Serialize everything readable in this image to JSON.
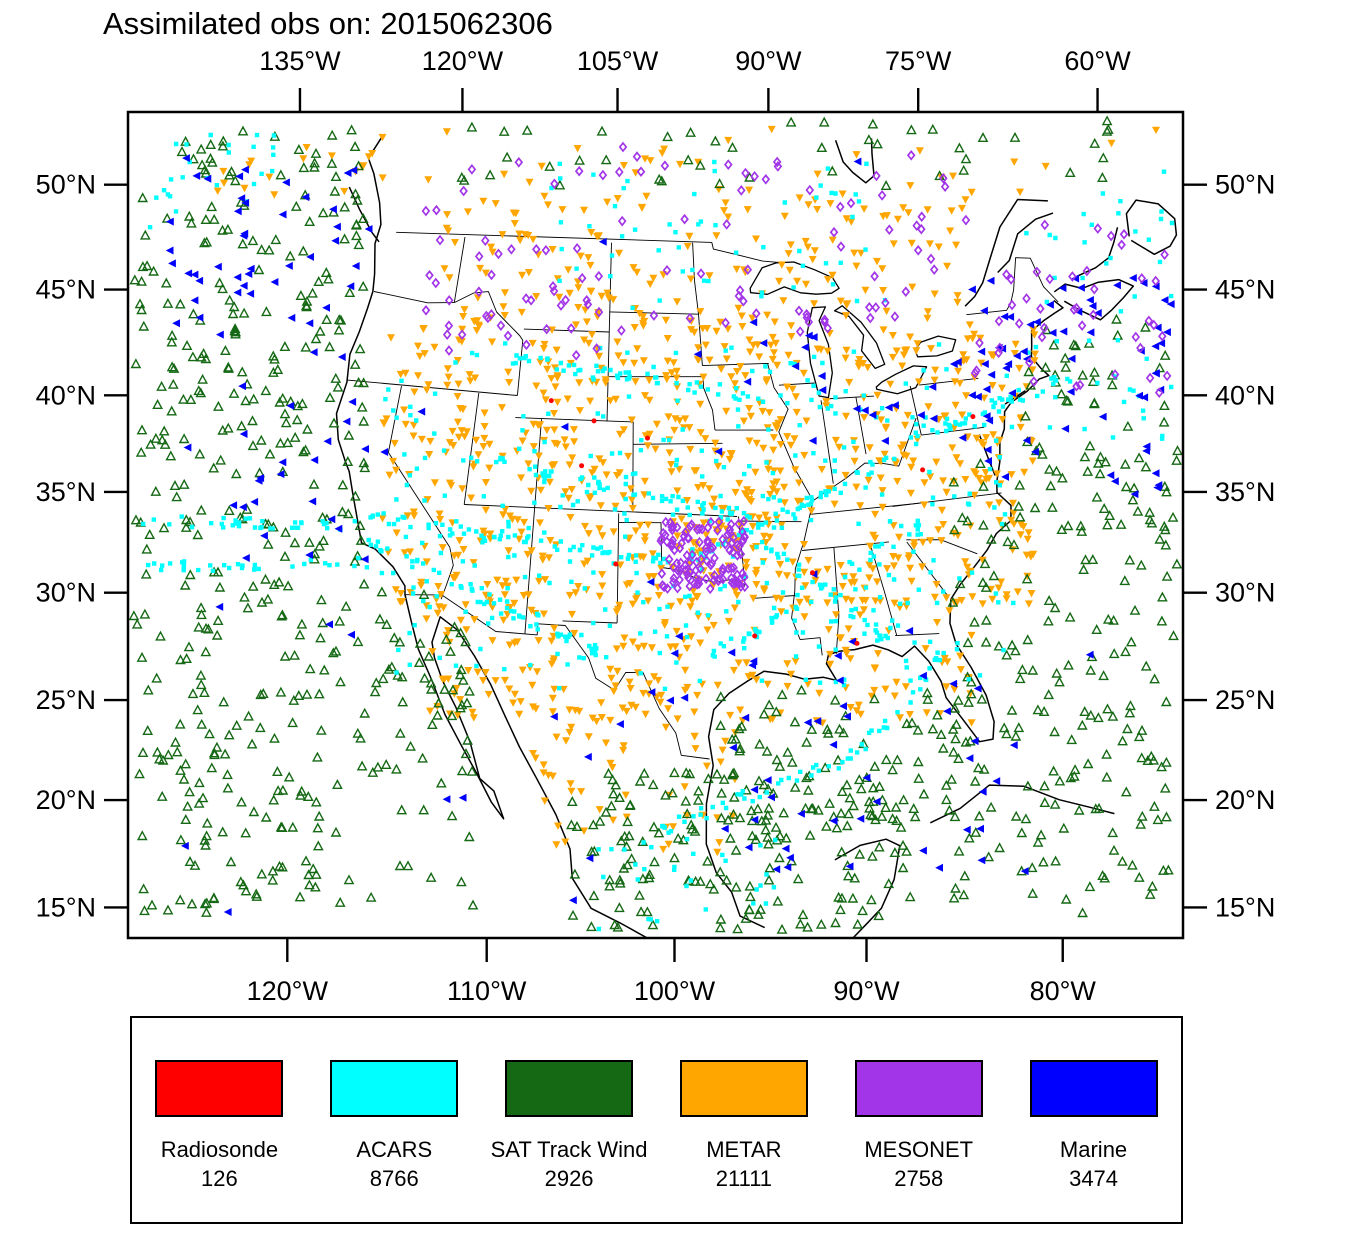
{
  "title": "Assimilated obs on: 2015062306",
  "axes": {
    "top": [
      {
        "label": "135°W",
        "f": 0.163
      },
      {
        "label": "120°W",
        "f": 0.317
      },
      {
        "label": "105°W",
        "f": 0.464
      },
      {
        "label": "90°W",
        "f": 0.607
      },
      {
        "label": "75°W",
        "f": 0.749
      },
      {
        "label": "60°W",
        "f": 0.919
      }
    ],
    "bottom": [
      {
        "label": "120°W",
        "f": 0.151
      },
      {
        "label": "110°W",
        "f": 0.34
      },
      {
        "label": "100°W",
        "f": 0.518
      },
      {
        "label": "90°W",
        "f": 0.7
      },
      {
        "label": "80°W",
        "f": 0.886
      }
    ],
    "left": [
      {
        "label": "50°N",
        "f": 0.088
      },
      {
        "label": "45°N",
        "f": 0.215
      },
      {
        "label": "40°N",
        "f": 0.343
      },
      {
        "label": "35°N",
        "f": 0.46
      },
      {
        "label": "30°N",
        "f": 0.582
      },
      {
        "label": "25°N",
        "f": 0.712
      },
      {
        "label": "20°N",
        "f": 0.833
      },
      {
        "label": "15°N",
        "f": 0.963
      }
    ],
    "right": [
      {
        "label": "50°N",
        "f": 0.088
      },
      {
        "label": "45°N",
        "f": 0.215
      },
      {
        "label": "40°N",
        "f": 0.343
      },
      {
        "label": "35°N",
        "f": 0.46
      },
      {
        "label": "30°N",
        "f": 0.582
      },
      {
        "label": "25°N",
        "f": 0.712
      },
      {
        "label": "20°N",
        "f": 0.833
      },
      {
        "label": "15°N",
        "f": 0.963
      }
    ]
  },
  "legend": {
    "items": [
      {
        "label": "Radiosonde",
        "count": "126",
        "color": "#ff0000"
      },
      {
        "label": "ACARS",
        "count": "8766",
        "color": "#00ffff"
      },
      {
        "label": "SAT Track Wind",
        "count": "2926",
        "color": "#156915"
      },
      {
        "label": "METAR",
        "count": "21111",
        "color": "#ffa600"
      },
      {
        "label": "MESONET",
        "count": "2758",
        "color": "#a235e8"
      },
      {
        "label": "Marine",
        "count": "3474",
        "color": "#0000ff"
      }
    ]
  },
  "chart_data": {
    "type": "scatter",
    "title": "Assimilated obs on: 2015062306",
    "map_region": {
      "lat_ticks": [
        "15°N",
        "20°N",
        "25°N",
        "30°N",
        "35°N",
        "40°N",
        "45°N",
        "50°N"
      ],
      "lon_ticks_top": [
        "135°W",
        "120°W",
        "105°W",
        "90°W",
        "75°W",
        "60°W"
      ],
      "lon_ticks_bottom": [
        "120°W",
        "110°W",
        "100°W",
        "90°W",
        "80°W"
      ]
    },
    "series": [
      {
        "name": "Radiosonde",
        "count": 126,
        "color": "#ff0000",
        "marker": "filled-circle"
      },
      {
        "name": "ACARS",
        "count": 8766,
        "color": "#00ffff",
        "marker": "filled-square"
      },
      {
        "name": "SAT Track Wind",
        "count": 2926,
        "color": "#156915",
        "marker": "open-triangle-up"
      },
      {
        "name": "METAR",
        "count": 21111,
        "color": "#ffa600",
        "marker": "filled-triangle-down"
      },
      {
        "name": "MESONET",
        "count": 2758,
        "color": "#a235e8",
        "marker": "open-diamond"
      },
      {
        "name": "Marine",
        "count": 3474,
        "color": "#0000ff",
        "marker": "filled-triangle-left"
      }
    ],
    "distribution": {
      "METAR": {
        "regions": [
          [
            0.24,
            0.86,
            0.26,
            0.6,
            700
          ],
          [
            0.28,
            0.8,
            0.58,
            0.74,
            220
          ],
          [
            0.3,
            0.8,
            0.1,
            0.26,
            170
          ],
          [
            0.38,
            0.58,
            0.74,
            0.9,
            50
          ],
          [
            0.08,
            0.98,
            0.02,
            0.1,
            50
          ],
          [
            0.52,
            0.62,
            0.44,
            0.56,
            40
          ]
        ]
      },
      "SAT Track Wind": {
        "regions": [
          [
            0.005,
            0.225,
            0.02,
            0.97,
            400
          ],
          [
            0.225,
            0.33,
            0.58,
            0.97,
            60
          ],
          [
            0.42,
            0.75,
            0.8,
            0.99,
            170
          ],
          [
            0.56,
            0.79,
            0.7,
            0.86,
            80
          ],
          [
            0.78,
            0.995,
            0.42,
            0.97,
            200
          ],
          [
            0.3,
            0.95,
            0.01,
            0.09,
            45
          ],
          [
            0.85,
            0.995,
            0.25,
            0.42,
            40
          ]
        ]
      },
      "ACARS": {
        "regions": [
          [
            0.24,
            0.84,
            0.28,
            0.7,
            330
          ],
          [
            0.4,
            0.72,
            0.06,
            0.24,
            55
          ],
          [
            0.85,
            0.99,
            0.06,
            0.4,
            45
          ],
          [
            0.44,
            0.62,
            0.88,
            0.99,
            30
          ],
          [
            0.02,
            0.15,
            0.02,
            0.14,
            25
          ]
        ],
        "streaks": [
          [
            0.225,
            0.49,
            0.52,
            0.545,
            60
          ],
          [
            0.23,
            0.52,
            0.46,
            0.665,
            50
          ],
          [
            0.3,
            0.41,
            0.62,
            0.5,
            55
          ],
          [
            0.53,
            0.55,
            0.73,
            0.415,
            50
          ],
          [
            0.55,
            0.665,
            0.76,
            0.49,
            40
          ],
          [
            0.36,
            0.3,
            0.76,
            0.375,
            55
          ],
          [
            0.02,
            0.495,
            0.21,
            0.5,
            35
          ],
          [
            0.02,
            0.55,
            0.22,
            0.545,
            30
          ],
          [
            0.5,
            0.87,
            0.69,
            0.78,
            35
          ],
          [
            0.69,
            0.78,
            0.81,
            0.6,
            25
          ],
          [
            0.74,
            0.4,
            0.89,
            0.32,
            40
          ],
          [
            0.6,
            0.52,
            0.72,
            0.64,
            30
          ]
        ]
      },
      "MESONET": {
        "regions": [
          [
            0.503,
            0.585,
            0.495,
            0.578,
            120
          ],
          [
            0.28,
            0.78,
            0.04,
            0.27,
            90
          ],
          [
            0.78,
            0.99,
            0.12,
            0.34,
            45
          ],
          [
            0.3,
            0.45,
            0.14,
            0.3,
            15
          ]
        ]
      },
      "Marine": {
        "regions": [
          [
            0.1,
            0.23,
            0.06,
            0.55,
            45
          ],
          [
            0.8,
            0.99,
            0.2,
            0.46,
            65
          ],
          [
            0.58,
            0.8,
            0.25,
            0.4,
            22
          ],
          [
            0.5,
            0.86,
            0.62,
            0.92,
            45
          ],
          [
            0.02,
            0.99,
            0.02,
            0.97,
            35
          ],
          [
            0.03,
            0.12,
            0.03,
            0.3,
            18
          ]
        ]
      },
      "Radiosonde": {
        "regions": [
          [
            0.26,
            0.84,
            0.3,
            0.68,
            10
          ]
        ]
      }
    }
  }
}
